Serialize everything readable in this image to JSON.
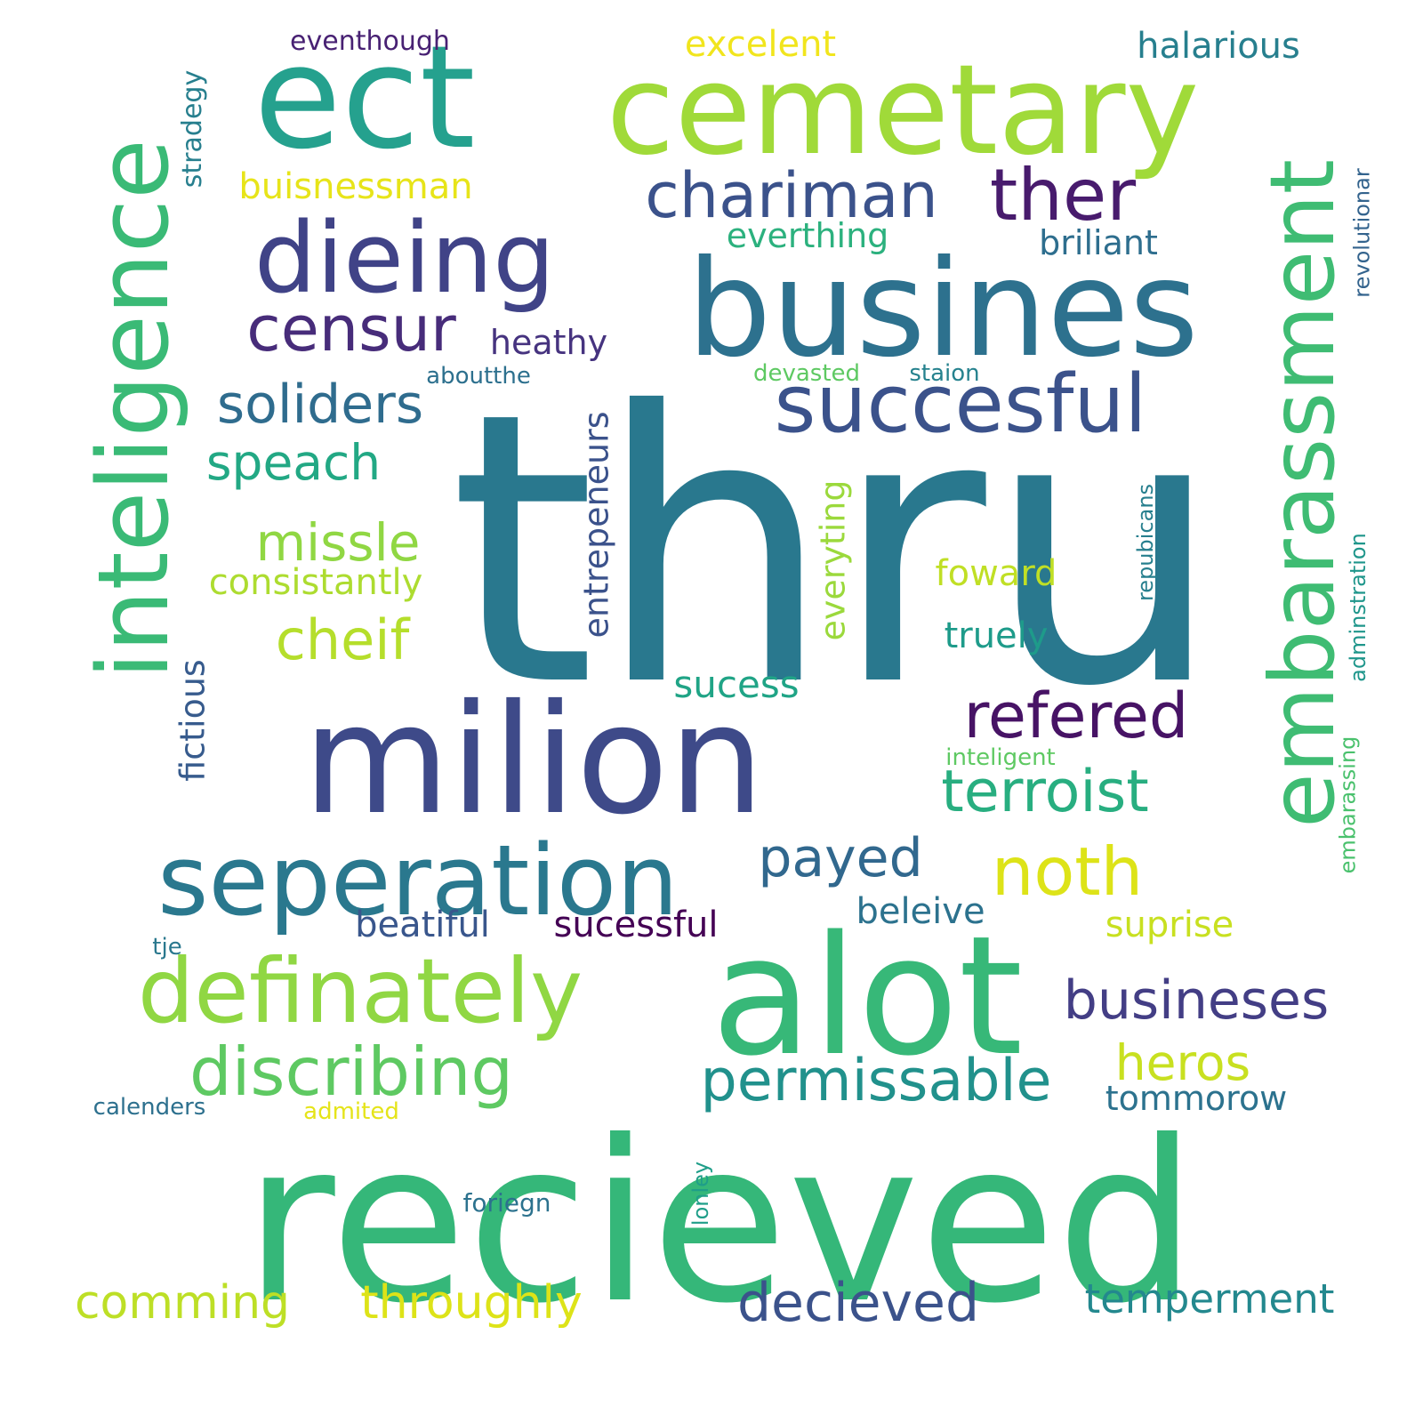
{
  "words": [
    {
      "text": "thru",
      "color": "#29788e"
    },
    {
      "text": "recieved",
      "color": "#35b779"
    },
    {
      "text": "milion",
      "color": "#3e4a89"
    },
    {
      "text": "alot",
      "color": "#37b878"
    },
    {
      "text": "busines",
      "color": "#2d718e"
    },
    {
      "text": "cemetary",
      "color": "#a0da39"
    },
    {
      "text": "ect",
      "color": "#25a18e"
    },
    {
      "text": "seperation",
      "color": "#2a788e"
    },
    {
      "text": "inteligence",
      "color": "#3aba76"
    },
    {
      "text": "embarassment",
      "color": "#3fbc73"
    },
    {
      "text": "definately",
      "color": "#90d743"
    },
    {
      "text": "dieing",
      "color": "#404387"
    },
    {
      "text": "succesful",
      "color": "#3b528b"
    },
    {
      "text": "chariman",
      "color": "#3b528b"
    },
    {
      "text": "ther",
      "color": "#481b6d"
    },
    {
      "text": "censur",
      "color": "#472c7a"
    },
    {
      "text": "discribing",
      "color": "#5ec962"
    },
    {
      "text": "refered",
      "color": "#471365"
    },
    {
      "text": "noth",
      "color": "#dde318"
    },
    {
      "text": "busineses",
      "color": "#433e85"
    },
    {
      "text": "permissable",
      "color": "#21918c"
    },
    {
      "text": "terroist",
      "color": "#28ae80"
    },
    {
      "text": "decieved",
      "color": "#3b528b"
    },
    {
      "text": "payed",
      "color": "#31688e"
    },
    {
      "text": "soliders",
      "color": "#2f6c8e"
    },
    {
      "text": "speach",
      "color": "#22a884"
    },
    {
      "text": "missle",
      "color": "#90d743"
    },
    {
      "text": "cheif",
      "color": "#b5de2b"
    },
    {
      "text": "heros",
      "color": "#c8e020"
    },
    {
      "text": "comming",
      "color": "#bddf26"
    },
    {
      "text": "throughly",
      "color": "#dde318"
    },
    {
      "text": "temperment",
      "color": "#23888e"
    },
    {
      "text": "consistantly",
      "color": "#addc30"
    },
    {
      "text": "sucessful",
      "color": "#440154"
    },
    {
      "text": "beatiful",
      "color": "#39568c"
    },
    {
      "text": "beleive",
      "color": "#2c728e"
    },
    {
      "text": "suprise",
      "color": "#c8e020"
    },
    {
      "text": "foward",
      "color": "#c0df25"
    },
    {
      "text": "truely",
      "color": "#1e9b8a"
    },
    {
      "text": "sucess",
      "color": "#20a486"
    },
    {
      "text": "buisnessman",
      "color": "#e7e419"
    },
    {
      "text": "everthing",
      "color": "#2cb17e"
    },
    {
      "text": "briliant",
      "color": "#2e6e8e"
    },
    {
      "text": "heathy",
      "color": "#46337f"
    },
    {
      "text": "excelent",
      "color": "#f1e51d"
    },
    {
      "text": "halarious",
      "color": "#277f8e"
    },
    {
      "text": "eventhough",
      "color": "#482173"
    },
    {
      "text": "tommorow",
      "color": "#2c728e"
    },
    {
      "text": "entrepeneurs",
      "color": "#3b528b"
    },
    {
      "text": "everyting",
      "color": "#9bd93c"
    },
    {
      "text": "fictious",
      "color": "#375b8d"
    },
    {
      "text": "stradegy",
      "color": "#277f8e"
    },
    {
      "text": "revolutionar",
      "color": "#33638d"
    },
    {
      "text": "adminstration",
      "color": "#1f968b"
    },
    {
      "text": "embarassing",
      "color": "#4ac16d"
    },
    {
      "text": "repubicans",
      "color": "#277f8e"
    },
    {
      "text": "lonley",
      "color": "#1f9e89"
    },
    {
      "text": "foriegn",
      "color": "#2c728e"
    },
    {
      "text": "calenders",
      "color": "#2d708e"
    },
    {
      "text": "admited",
      "color": "#e5e419"
    },
    {
      "text": "tje",
      "color": "#2a788e"
    },
    {
      "text": "aboutthe",
      "color": "#2d708e"
    },
    {
      "text": "devasted",
      "color": "#5ec962"
    },
    {
      "text": "staion",
      "color": "#26828e"
    },
    {
      "text": "inteligent",
      "color": "#5ec962"
    }
  ]
}
